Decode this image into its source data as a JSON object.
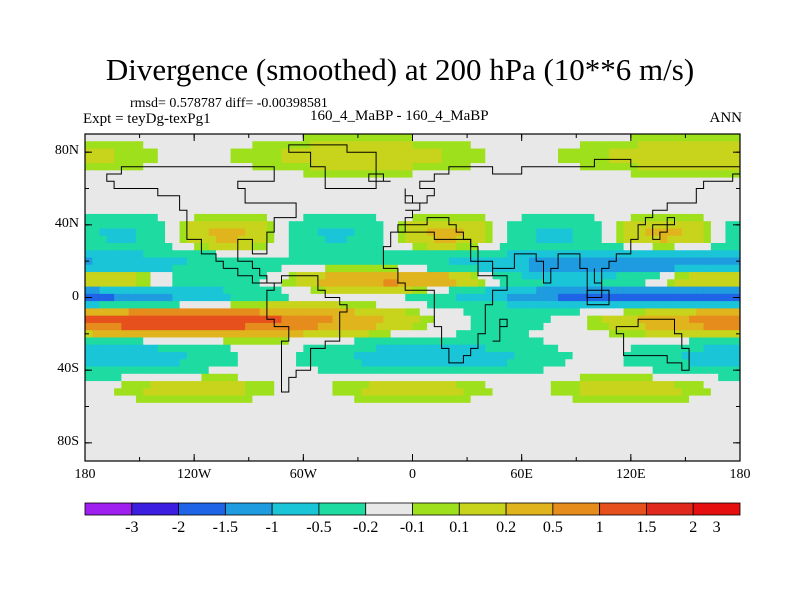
{
  "title": "Divergence (smoothed) at 200 hPa (10**6 m/s)",
  "stats": "rmsd= 0.578787 diff= -0.00398581",
  "experiment": "Expt = teyDg-texPg1",
  "case_label": "160_4_MaBP - 160_4_MaBP",
  "season": "ANN",
  "lat_ticks": [
    "80N",
    "40N",
    "0",
    "40S",
    "80S"
  ],
  "lon_ticks": [
    "180",
    "120W",
    "60W",
    "0",
    "60E",
    "120E",
    "180"
  ],
  "colorbar": {
    "colors": [
      "#9e1ff0",
      "#3c1ee0",
      "#1f63e6",
      "#1f9be0",
      "#1bc5d8",
      "#1edba2",
      "#e8e8e8",
      "#9ee01c",
      "#c8d41c",
      "#e0b41c",
      "#e68c1c",
      "#e6501c",
      "#e0281c",
      "#e60f0f"
    ],
    "labels": [
      "-3",
      "-2",
      "-1.5",
      "-1",
      "-0.5",
      "-0.2",
      "-0.1",
      "0.1",
      "0.2",
      "0.5",
      "1",
      "1.5",
      "2",
      "3"
    ]
  },
  "chart_data": {
    "type": "heatmap",
    "title": "Divergence (smoothed) at 200 hPa (10**6 m/s)",
    "variable": "Divergence (smoothed)",
    "level": "200 hPa",
    "units": "10**6 m/s",
    "xlabel": "",
    "ylabel": "",
    "xlim": [
      -180,
      180
    ],
    "ylim": [
      -90,
      90
    ],
    "contour_levels": [
      -3,
      -2,
      -1.5,
      -1,
      -0.5,
      -0.2,
      -0.1,
      0.1,
      0.2,
      0.5,
      1,
      1.5,
      2,
      3
    ],
    "bands": [
      {
        "lat_range": [
          70,
          90
        ],
        "sign": "positive",
        "approx_value": 0.2
      },
      {
        "lat_range": [
          50,
          65
        ],
        "sign": "mixed",
        "approx_value": 0.1
      },
      {
        "lat_range": [
          10,
          25
        ],
        "sign": "mixed",
        "approx_value": -1
      },
      {
        "lat_range": [
          -5,
          5
        ],
        "sign": "negative",
        "approx_value": -1.5
      },
      {
        "lat_range": [
          -20,
          -10
        ],
        "sign": "positive",
        "approx_value": 1.5
      },
      {
        "lat_range": [
          -40,
          -25
        ],
        "sign": "negative",
        "approx_value": -0.5
      },
      {
        "lat_range": [
          -55,
          -45
        ],
        "sign": "positive",
        "approx_value": 0.2
      }
    ]
  }
}
